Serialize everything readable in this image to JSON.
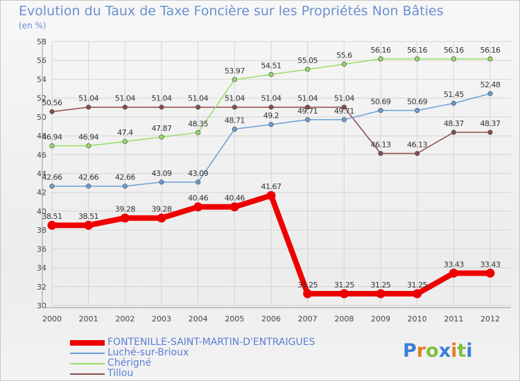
{
  "chart_data": {
    "type": "line",
    "title": "Evolution du Taux de Taxe Foncière sur les Propriétés Non Bâties",
    "subtitle": "(en %)",
    "x": [
      "2000",
      "2001",
      "2002",
      "2003",
      "2004",
      "2005",
      "2006",
      "2007",
      "2008",
      "2009",
      "2010",
      "2011",
      "2012"
    ],
    "ylim": [
      30,
      58
    ],
    "yticks": [
      30,
      32,
      34,
      36,
      38,
      40,
      42,
      44,
      46,
      48,
      50,
      52,
      54,
      56,
      58
    ],
    "grid": true,
    "series": [
      {
        "name": "FONTENILLE-SAINT-MARTIN-D'ENTRAIGUES",
        "color": "#ee0000",
        "values": [
          38.51,
          38.51,
          39.28,
          39.28,
          40.46,
          40.46,
          41.67,
          31.25,
          31.25,
          31.25,
          31.25,
          33.43,
          33.43
        ],
        "labels": [
          "38.51",
          "38.51",
          "39.28",
          "39.28",
          "40.46",
          "40.46",
          "41.67",
          "31.25",
          "31.25",
          "31.25",
          "31.25",
          "33.43",
          "33.43"
        ]
      },
      {
        "name": "Luché-sur-Brioux",
        "color": "#6b9ed6",
        "values": [
          42.66,
          42.66,
          42.66,
          43.09,
          43.09,
          48.71,
          49.2,
          49.71,
          49.71,
          50.69,
          50.69,
          51.45,
          52.48
        ],
        "labels": [
          "42.66",
          "42.66",
          "42.66",
          "43.09",
          "43.09",
          "48.71",
          "49.2",
          "49.71",
          "49.71",
          "50.69",
          "50.69",
          "51.45",
          "52.48"
        ]
      },
      {
        "name": "Chérigné",
        "color": "#99dd66",
        "values": [
          46.94,
          46.94,
          47.4,
          47.87,
          48.35,
          53.97,
          54.51,
          55.05,
          55.6,
          56.16,
          56.16,
          56.16,
          56.16
        ],
        "labels": [
          "46.94",
          "46.94",
          "47.4",
          "47.87",
          "48.35",
          "53.97",
          "54.51",
          "55.05",
          "55.6",
          "56.16",
          "56.16",
          "56.16",
          "56.16"
        ]
      },
      {
        "name": "Tillou",
        "color": "#8b4a4a",
        "values": [
          50.56,
          51.04,
          51.04,
          51.04,
          51.04,
          51.04,
          51.04,
          51.04,
          51.04,
          46.13,
          46.13,
          48.37,
          48.37
        ],
        "labels": [
          "50.56",
          "51.04",
          "51.04",
          "51.04",
          "51.04",
          "51.04",
          "51.04",
          "51.04",
          "51.04",
          "46.13",
          "46.13",
          "48.37",
          "48.37"
        ]
      }
    ],
    "legend_position": "bottom-left"
  },
  "brand": {
    "letters": [
      "P",
      "r",
      "o",
      "x",
      "i",
      "t",
      "i"
    ],
    "colors": [
      "#3a7fd6",
      "#e67e22",
      "#7fbf3f",
      "#3a7fd6",
      "#e67e22",
      "#7fbf3f",
      "#3a7fd6"
    ]
  }
}
